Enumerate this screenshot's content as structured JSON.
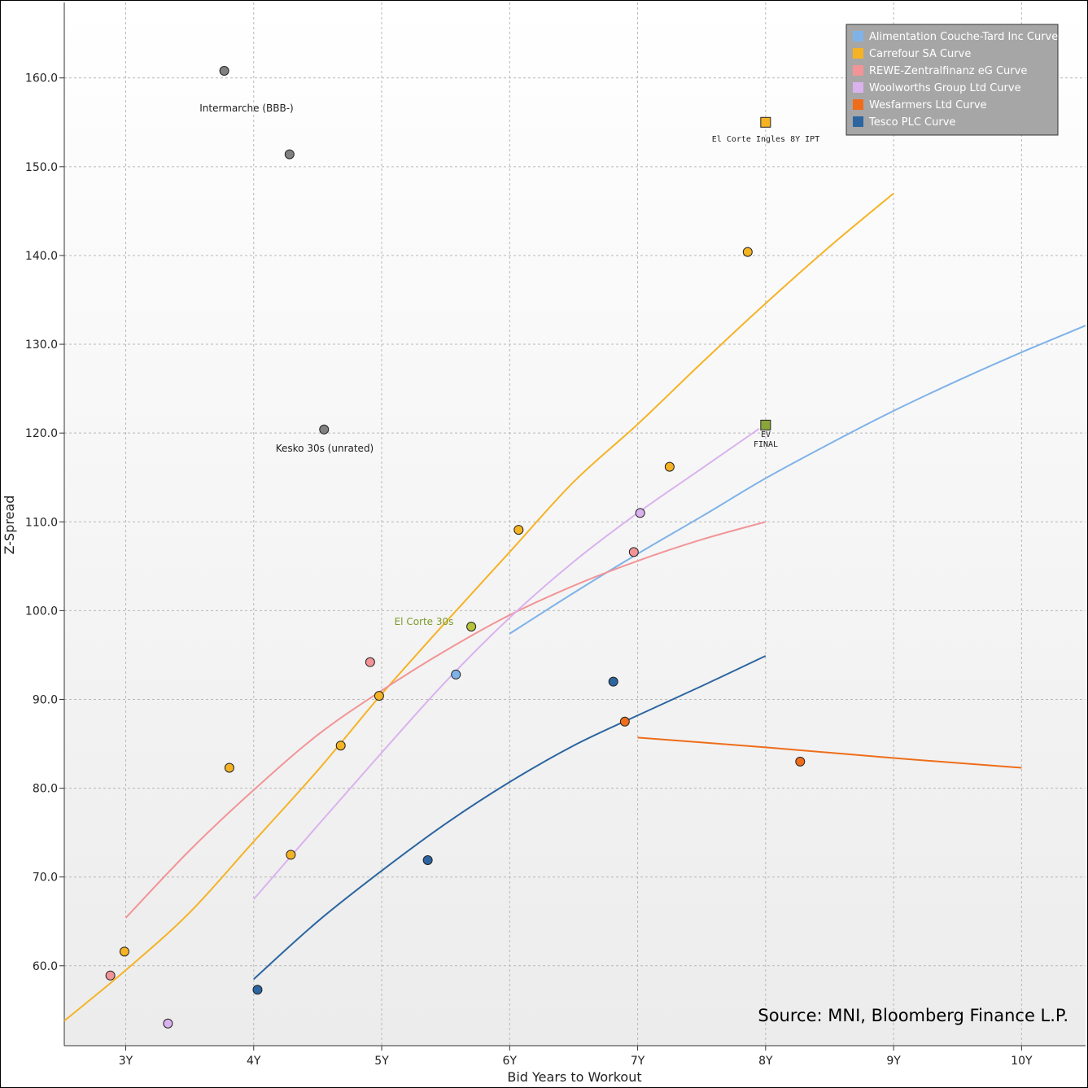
{
  "chart_data": {
    "type": "scatter",
    "title": "",
    "xlabel": "Bid Years to Workout",
    "ylabel": "Z-Spread",
    "xlim": [
      2.52,
      10.5
    ],
    "ylim": [
      51.0,
      168.5
    ],
    "x_ticks": [
      {
        "value": 3,
        "label": "3Y"
      },
      {
        "value": 4,
        "label": "4Y"
      },
      {
        "value": 5,
        "label": "5Y"
      },
      {
        "value": 6,
        "label": "6Y"
      },
      {
        "value": 7,
        "label": "7Y"
      },
      {
        "value": 8,
        "label": "8Y"
      },
      {
        "value": 9,
        "label": "9Y"
      },
      {
        "value": 10,
        "label": "10Y"
      }
    ],
    "y_ticks": [
      {
        "value": 60,
        "label": "60.0"
      },
      {
        "value": 70,
        "label": "70.0"
      },
      {
        "value": 80,
        "label": "80.0"
      },
      {
        "value": 90,
        "label": "90.0"
      },
      {
        "value": 100,
        "label": "100.0"
      },
      {
        "value": 110,
        "label": "110.0"
      },
      {
        "value": 120,
        "label": "120.0"
      },
      {
        "value": 130,
        "label": "130.0"
      },
      {
        "value": 140,
        "label": "140.0"
      },
      {
        "value": 150,
        "label": "150.0"
      },
      {
        "value": 160,
        "label": "160.0"
      }
    ],
    "grid": true,
    "legend_position": "top-right",
    "series": [
      {
        "name": "Alimentation Couche-Tard Inc Curve",
        "color": "#7fb3e8",
        "curve": [
          [
            6.0,
            97.4
          ],
          [
            6.5,
            102.0
          ],
          [
            7.0,
            106.4
          ],
          [
            7.5,
            110.6
          ],
          [
            8.0,
            114.9
          ],
          [
            8.5,
            118.8
          ],
          [
            9.0,
            122.5
          ],
          [
            9.5,
            125.9
          ],
          [
            10.0,
            129.1
          ],
          [
            10.5,
            132.1
          ]
        ],
        "points": [
          [
            5.58,
            92.8
          ]
        ]
      },
      {
        "name": "Carrefour SA Curve",
        "color": "#f5b324",
        "curve": [
          [
            2.52,
            53.8
          ],
          [
            3.0,
            59.5
          ],
          [
            3.5,
            66.0
          ],
          [
            4.0,
            74.0
          ],
          [
            4.5,
            82.0
          ],
          [
            5.0,
            90.6
          ],
          [
            5.5,
            98.7
          ],
          [
            6.0,
            106.6
          ],
          [
            6.5,
            114.5
          ],
          [
            7.0,
            121.0
          ],
          [
            7.5,
            127.9
          ],
          [
            8.0,
            134.6
          ],
          [
            8.5,
            141.0
          ],
          [
            9.0,
            147.0
          ]
        ],
        "points": [
          [
            2.99,
            61.6
          ],
          [
            3.81,
            82.3
          ],
          [
            4.29,
            72.5
          ],
          [
            4.68,
            84.8
          ],
          [
            4.98,
            90.4
          ],
          [
            6.07,
            109.1
          ],
          [
            7.25,
            116.2
          ],
          [
            7.86,
            140.4
          ]
        ]
      },
      {
        "name": "REWE-Zentralfinanz eG Curve",
        "color": "#f29497",
        "curve": [
          [
            3.0,
            65.4
          ],
          [
            3.5,
            73.0
          ],
          [
            4.0,
            79.8
          ],
          [
            4.5,
            86.0
          ],
          [
            5.0,
            91.0
          ],
          [
            5.5,
            95.5
          ],
          [
            6.0,
            99.5
          ],
          [
            6.5,
            102.8
          ],
          [
            7.0,
            105.6
          ],
          [
            7.5,
            108.0
          ],
          [
            8.0,
            110.0
          ]
        ],
        "points": [
          [
            2.88,
            58.9
          ],
          [
            4.91,
            94.2
          ],
          [
            6.97,
            106.6
          ]
        ]
      },
      {
        "name": "Woolworths Group Ltd Curve",
        "color": "#d9b2ee",
        "curve": [
          [
            4.0,
            67.5
          ],
          [
            4.5,
            75.8
          ],
          [
            5.0,
            84.0
          ],
          [
            5.5,
            92.0
          ],
          [
            6.0,
            99.2
          ],
          [
            6.5,
            105.5
          ],
          [
            7.0,
            111.0
          ],
          [
            7.5,
            116.0
          ],
          [
            7.95,
            120.5
          ]
        ],
        "points": [
          [
            3.33,
            53.5
          ],
          [
            7.02,
            111.0
          ]
        ]
      },
      {
        "name": "Wesfarmers Ltd Curve",
        "color": "#ef6d1a",
        "curve": [
          [
            7.0,
            85.7
          ],
          [
            8.0,
            84.6
          ],
          [
            9.0,
            83.4
          ],
          [
            10.0,
            82.3
          ]
        ],
        "points": [
          [
            6.9,
            87.5
          ],
          [
            8.27,
            83.0
          ]
        ]
      },
      {
        "name": "Tesco PLC Curve",
        "color": "#2c65a0",
        "curve": [
          [
            4.0,
            58.5
          ],
          [
            4.5,
            65.0
          ],
          [
            5.0,
            70.7
          ],
          [
            5.5,
            76.0
          ],
          [
            6.0,
            80.7
          ],
          [
            6.5,
            84.8
          ],
          [
            7.0,
            88.2
          ],
          [
            7.5,
            91.5
          ],
          [
            8.0,
            94.9
          ]
        ],
        "points": [
          [
            4.03,
            57.3
          ],
          [
            5.36,
            71.9
          ],
          [
            6.81,
            92.0
          ]
        ]
      }
    ],
    "other_points": [
      {
        "name": "Intermarche (BBB-)",
        "x": 3.77,
        "y": 160.8,
        "color": "#808080"
      },
      {
        "name": "",
        "x": 4.28,
        "y": 151.4,
        "color": "#808080"
      },
      {
        "name": "Kesko 30s (unrated)",
        "x": 4.55,
        "y": 120.4,
        "color": "#808080"
      },
      {
        "name": "El Corte 30s",
        "x": 5.7,
        "y": 98.2,
        "color": "#b6c43c"
      }
    ],
    "annotations": {
      "intermarche": "Intermarche (BBB-)",
      "kesko": "Kesko 30s (unrated)",
      "el_corte_30s": "El Corte 30s",
      "el_corte_ipt": "El Corte Ingles 8Y IPT",
      "ev_line1": "EV",
      "ev_line2": "FINAL"
    },
    "markers": [
      {
        "id": "ipt",
        "x": 8.0,
        "y": 155.0,
        "color": "#f5b324"
      },
      {
        "id": "ev",
        "x": 8.0,
        "y": 120.9,
        "color": "#8aa63a"
      }
    ],
    "source": "Source: MNI, Bloomberg Finance L.P."
  }
}
